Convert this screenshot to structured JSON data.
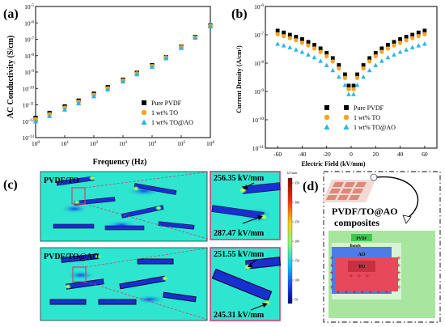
{
  "figure": {
    "panel_a": {
      "label": "(a)",
      "chart_data": {
        "type": "scatter",
        "ylabel": "AC Conductivity (S/cm)",
        "xlabel": "Frequency (Hz)",
        "xscale": "log",
        "yscale": "log",
        "xlim": [
          1,
          1000000
        ],
        "ylim": [
          1e-13,
          1e-05
        ],
        "x_tick_labels": [
          "10^0",
          "10^1",
          "10^2",
          "10^3",
          "10^4",
          "10^5",
          "10^6"
        ],
        "y_tick_labels": [
          "10^-13",
          "10^-12",
          "10^-11",
          "10^-10",
          "10^-9",
          "10^-8",
          "10^-7",
          "10^-6",
          "10^-5"
        ],
        "legend_position": "bottom-right",
        "series": [
          {
            "name": "Pure PVDF",
            "color": "#000000",
            "marker": "square",
            "x": [
              1,
              3,
              10,
              30,
              100,
              300,
              1000,
              3000,
              10000,
              30000,
              100000,
              300000,
              1000000
            ],
            "y": [
              1.6e-12,
              3.2e-12,
              8e-12,
              1.8e-11,
              4.8e-11,
              1.2e-10,
              3.4e-10,
              9e-10,
              2.6e-09,
              8e-09,
              3.5e-08,
              1.4e-07,
              7e-07
            ]
          },
          {
            "name": "1 wt% TO",
            "color": "#f5a623",
            "marker": "circle",
            "x": [
              1,
              3,
              10,
              30,
              100,
              300,
              1000,
              3000,
              10000,
              30000,
              100000,
              300000,
              1000000
            ],
            "y": [
              1.3e-12,
              2.6e-12,
              6.5e-12,
              1.5e-11,
              4e-11,
              1e-10,
              3e-10,
              8e-10,
              2.3e-09,
              7.5e-09,
              3.2e-08,
              1.3e-07,
              6.5e-07
            ]
          },
          {
            "name": "1 wt% TO@AO",
            "color": "#29b6e8",
            "marker": "triangle",
            "x": [
              1,
              3,
              10,
              30,
              100,
              300,
              1000,
              3000,
              10000,
              30000,
              100000,
              300000,
              1000000
            ],
            "y": [
              1e-12,
              2.1e-12,
              5.2e-12,
              1.25e-11,
              3.4e-11,
              8.8e-11,
              2.7e-10,
              7.4e-10,
              2.1e-09,
              7e-09,
              3e-08,
              1.25e-07,
              6.2e-07
            ]
          }
        ]
      }
    },
    "panel_b": {
      "label": "(b)",
      "chart_data": {
        "type": "scatter",
        "ylabel": "Current Density (A/cm²)",
        "xlabel": "Electric Field (kV/mm)",
        "yscale": "log",
        "xlim": [
          -70,
          70
        ],
        "ylim": [
          1e-11,
          1e-06
        ],
        "x_tick_labels": [
          "-60",
          "-40",
          "-20",
          "0",
          "20",
          "40",
          "60"
        ],
        "y_tick_labels": [
          "10^-11",
          "10^-10",
          "10^-9",
          "10^-8",
          "10^-7",
          "10^-6"
        ],
        "legend_position": "bottom-right",
        "series": [
          {
            "name": "Pure PVDF",
            "color": "#000000",
            "marker": "square",
            "x": [
              -60,
              -55,
              -50,
              -45,
              -40,
              -35,
              -30,
              -25,
              -20,
              -15,
              -10,
              -5,
              -2,
              2,
              5,
              10,
              15,
              20,
              25,
              30,
              35,
              40,
              45,
              50,
              55,
              60
            ],
            "y": [
              1.4e-07,
              1.2e-07,
              1e-07,
              8.5e-08,
              7e-08,
              5.6e-08,
              4.4e-08,
              3.3e-08,
              2.3e-08,
              1.5e-08,
              8.5e-09,
              4e-09,
              1.6e-09,
              1.6e-09,
              4e-09,
              8.5e-09,
              1.5e-08,
              2.3e-08,
              3.3e-08,
              4.4e-08,
              5.6e-08,
              7e-08,
              8.5e-08,
              1e-07,
              1.2e-07,
              1.4e-07
            ]
          },
          {
            "name": "1 wt% TO",
            "color": "#f5a623",
            "marker": "circle",
            "x": [
              -60,
              -55,
              -50,
              -45,
              -40,
              -35,
              -30,
              -25,
              -20,
              -15,
              -10,
              -5,
              -2,
              2,
              5,
              10,
              15,
              20,
              25,
              30,
              35,
              40,
              45,
              50,
              55,
              60
            ],
            "y": [
              1.05e-07,
              9e-08,
              7.6e-08,
              6.4e-08,
              5.2e-08,
              4.2e-08,
              3.3e-08,
              2.5e-08,
              1.75e-08,
              1.15e-08,
              6.5e-09,
              3e-09,
              1.2e-09,
              1.2e-09,
              3e-09,
              6.5e-09,
              1.15e-08,
              1.75e-08,
              2.5e-08,
              3.3e-08,
              4.2e-08,
              5.2e-08,
              6.4e-08,
              7.6e-08,
              9e-08,
              1.05e-07
            ]
          },
          {
            "name": "1 wt% TO@AO",
            "color": "#29b6e8",
            "marker": "triangle",
            "x": [
              -60,
              -55,
              -50,
              -45,
              -40,
              -35,
              -30,
              -25,
              -20,
              -15,
              -10,
              -5,
              -2,
              2,
              5,
              10,
              15,
              20,
              25,
              30,
              35,
              40,
              45,
              50,
              55,
              60
            ],
            "y": [
              4.8e-08,
              4.2e-08,
              3.6e-08,
              3e-08,
              2.5e-08,
              2e-08,
              1.6e-08,
              1.2e-08,
              8.5e-09,
              5.6e-09,
              3.3e-09,
              1.7e-09,
              8e-10,
              8e-10,
              1.7e-09,
              3.3e-09,
              5.6e-09,
              8.5e-09,
              1.2e-08,
              1.6e-08,
              2e-08,
              2.5e-08,
              3e-08,
              3.6e-08,
              4.2e-08,
              4.8e-08
            ]
          }
        ]
      }
    },
    "panel_c": {
      "label": "(c)",
      "top_title": "PVDF/TO",
      "bottom_title": "PVDF/TO@AO",
      "top_zoom_value_1": "256.35 kV/mm",
      "top_zoom_value_2": "287.47 kV/mm",
      "bottom_zoom_value_1": "251.55 kV/mm",
      "bottom_zoom_value_2": "245.31 kV/mm",
      "colorbar_unit": "kV/mm",
      "colorbar_ticks": [
        "350",
        "300",
        "250",
        "200",
        "150",
        "100",
        "50"
      ]
    },
    "panel_d": {
      "label": "(d)",
      "caption_line1": "PVDF/TO@AO",
      "caption_line2": "composites",
      "layer_pvdf": "PVDF",
      "layer_bonds": "Bonds",
      "layer_ao": "AO",
      "layer_to": "TO",
      "colors": {
        "pvdf": "#9ee09a",
        "ao": "#4f7be8",
        "to": "#e8495a",
        "dark_to": "#c9303f"
      }
    }
  }
}
